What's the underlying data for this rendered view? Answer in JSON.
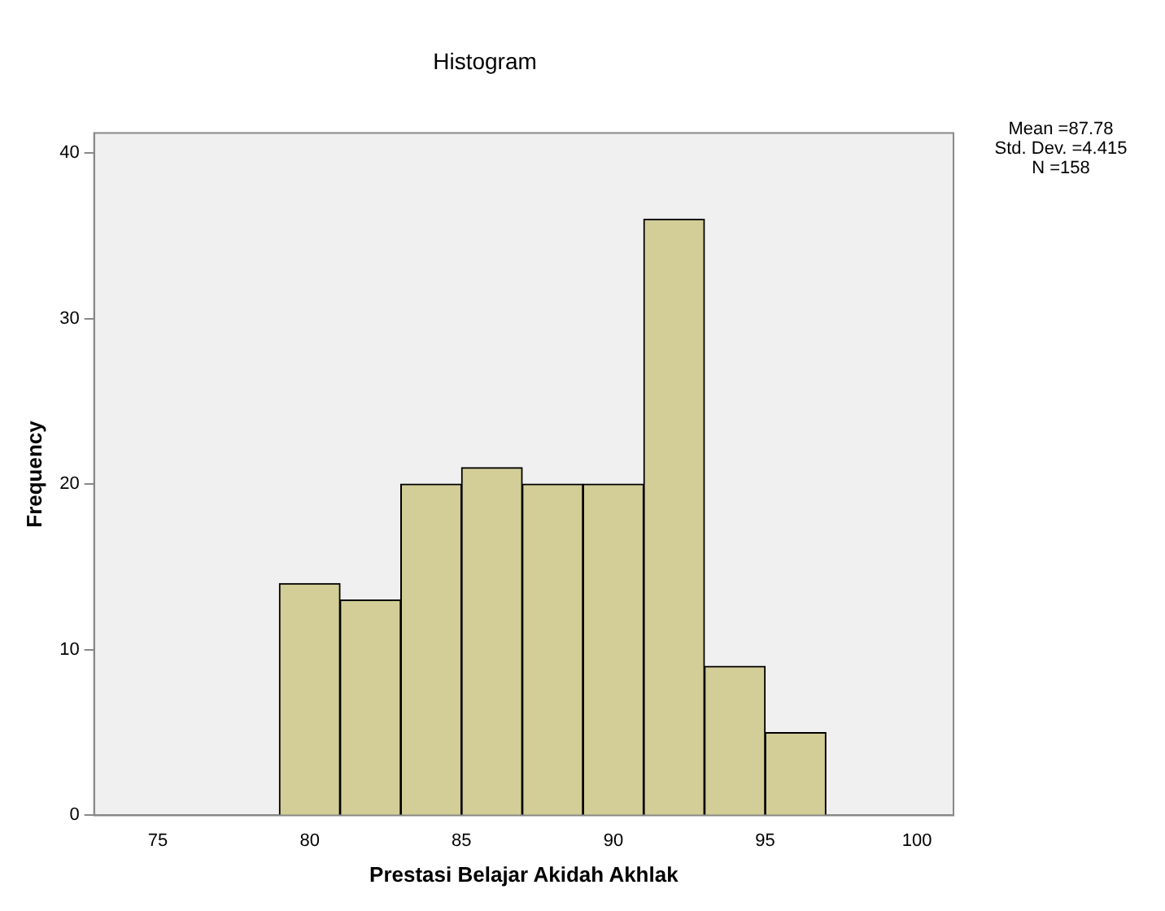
{
  "chart_data": {
    "type": "histogram",
    "title": "Histogram",
    "xlabel": "Prestasi Belajar Akidah Akhlak",
    "ylabel": "Frequency",
    "bins": [
      79,
      81,
      83,
      85,
      87,
      89,
      91,
      93,
      95,
      97
    ],
    "values": [
      14,
      13,
      20,
      21,
      20,
      20,
      36,
      9,
      5
    ],
    "color": "#d3ce97",
    "xlim": [
      72.9,
      101.2
    ],
    "xticks": [
      75,
      80,
      85,
      90,
      95,
      100
    ],
    "ylim": [
      0,
      41.2
    ],
    "yticks": [
      0,
      10,
      20,
      30,
      40
    ],
    "grid": false,
    "legend": false,
    "annotations": [
      "Mean =87.78",
      "Std. Dev. =4.415",
      "N =158"
    ]
  }
}
